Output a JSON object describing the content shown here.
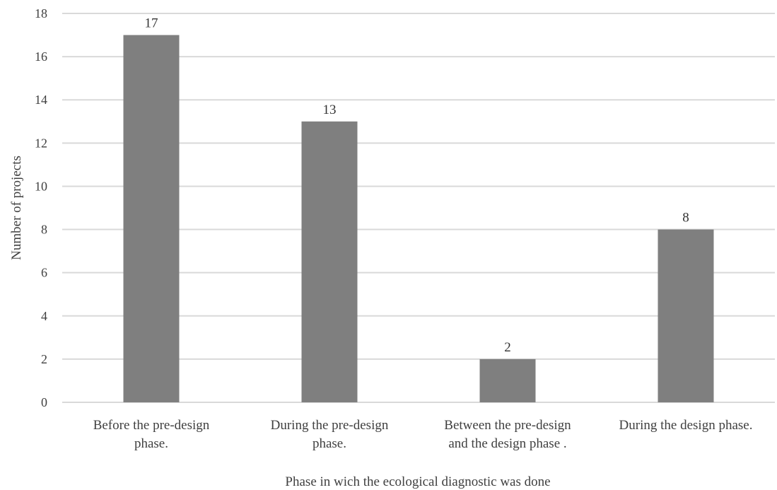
{
  "chart_data": {
    "type": "bar",
    "categories": [
      [
        "Before the pre-design",
        "phase."
      ],
      [
        "During the pre-design",
        "phase."
      ],
      [
        "Between the pre-design",
        "and the design phase ."
      ],
      [
        "During the design phase."
      ]
    ],
    "values": [
      17,
      13,
      2,
      8
    ],
    "data_labels": [
      "17",
      "13",
      "2",
      "8"
    ],
    "title": "",
    "xlabel": "Phase in wich the ecological diagnostic was done",
    "ylabel": "Number of projects",
    "ylim": [
      0,
      18
    ],
    "yticks": [
      0,
      2,
      4,
      6,
      8,
      10,
      12,
      14,
      16,
      18
    ],
    "grid": true,
    "legend": "none",
    "colors": {
      "bar": "#7f7f7f",
      "grid": "#d9d9d9",
      "text": "#404040"
    }
  }
}
